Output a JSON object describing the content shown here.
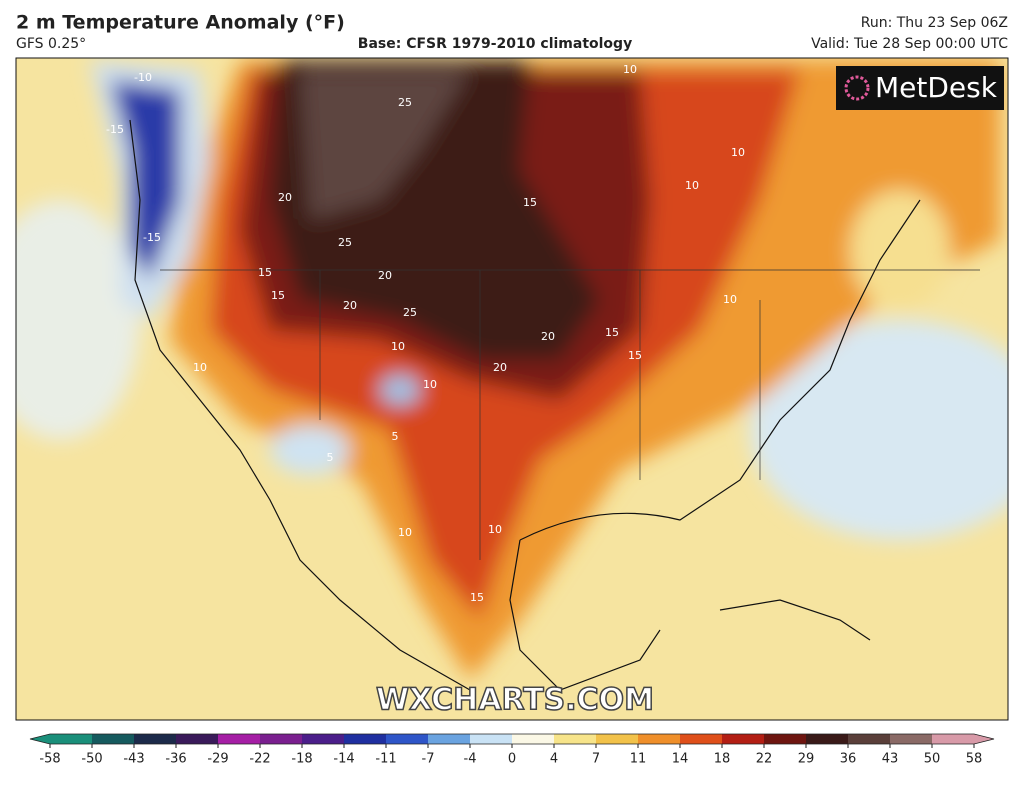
{
  "header": {
    "title": "2 m Temperature Anomaly (°F)",
    "model": "GFS 0.25°",
    "base": "Base: CFSR 1979-2010 climatology",
    "run": "Run: Thu 23 Sep 06Z",
    "valid": "Valid: Tue 28 Sep 00:00 UTC"
  },
  "logo": "MetDesk",
  "watermark": "WXCHARTS.COM",
  "contour_labels": [
    25,
    20,
    25,
    20,
    15,
    15,
    20,
    25,
    15,
    20,
    20,
    15,
    15,
    10,
    10,
    10,
    10,
    -10,
    -15,
    -15,
    10,
    10,
    10,
    5,
    10,
    15,
    10,
    5
  ],
  "colorbar": {
    "ticks": [
      -58,
      -50,
      -43,
      -36,
      -29,
      -22,
      -18,
      -14,
      -11,
      -7,
      -4,
      0,
      4,
      7,
      11,
      14,
      18,
      22,
      29,
      36,
      43,
      50,
      58
    ],
    "colors": [
      "#1a8f7a",
      "#155a5e",
      "#1c2a4a",
      "#3a1a5a",
      "#a51ea5",
      "#7a1f8f",
      "#4b1e8a",
      "#1f2fa0",
      "#2e55c8",
      "#6aa3e0",
      "#c9e2f5",
      "#fbf8e6",
      "#f7e48a",
      "#f2c24a",
      "#ef8f2a",
      "#df4f1a",
      "#b31e14",
      "#6e1510",
      "#3a1a18",
      "#5a3f3a",
      "#8a6a66",
      "#d89aa8"
    ]
  }
}
